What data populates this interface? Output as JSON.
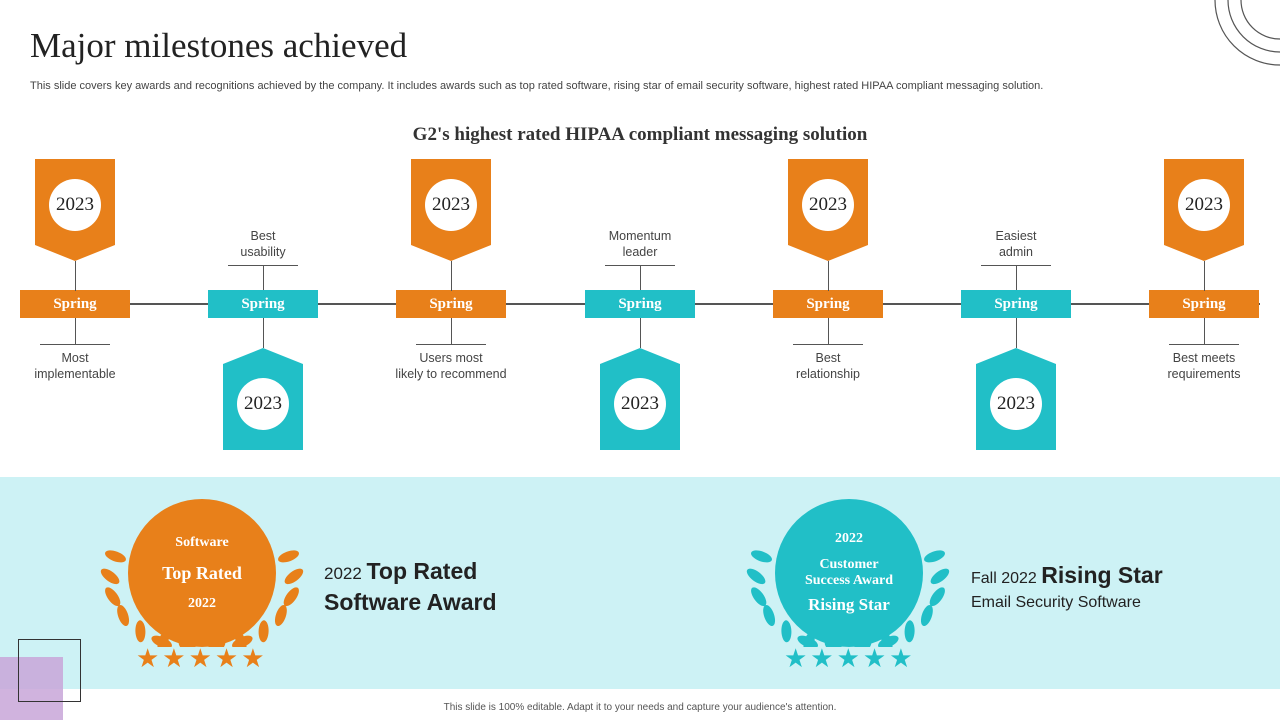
{
  "page": {
    "title": "Major milestones achieved",
    "subtitle": "This slide covers key awards and recognitions achieved by the company. It includes awards such as top rated software, rising star of email security software, highest rated HIPAA compliant messaging solution.",
    "footer": "This slide is 100% editable. Adapt it to your needs and capture your audience's attention."
  },
  "timeline": {
    "heading": "G2's highest rated HIPAA compliant messaging solution",
    "colors": {
      "orange": "#e8801a",
      "teal": "#21bfc7"
    },
    "items": [
      {
        "season": "Spring",
        "year": "2023",
        "label_line1": "Most",
        "label_line2": "implementable",
        "color": "orange"
      },
      {
        "season": "Spring",
        "year": "2023",
        "label_line1": "Best",
        "label_line2": "usability",
        "color": "teal"
      },
      {
        "season": "Spring",
        "year": "2023",
        "label_line1": "Users most",
        "label_line2": "likely to recommend",
        "color": "orange"
      },
      {
        "season": "Spring",
        "year": "2023",
        "label_line1": "Momentum",
        "label_line2": "leader",
        "color": "teal"
      },
      {
        "season": "Spring",
        "year": "2023",
        "label_line1": "Best",
        "label_line2": "relationship",
        "color": "orange"
      },
      {
        "season": "Spring",
        "year": "2023",
        "label_line1": "Easiest",
        "label_line2": "admin",
        "color": "teal"
      },
      {
        "season": "Spring",
        "year": "2023",
        "label_line1": "Best meets",
        "label_line2": "requirements",
        "color": "orange"
      }
    ]
  },
  "awards": {
    "left": {
      "badge_line1": "Software",
      "badge_line2": "Top Rated",
      "badge_line3": "2022",
      "title_prefix": "2022 ",
      "title_bold": "Top Rated",
      "title_line2": "Software Award",
      "stars": "★★★★★",
      "color": "#e8801a"
    },
    "right": {
      "badge_line1": "2022",
      "badge_line2": "Customer",
      "badge_line3": "Success Award",
      "badge_line4": "Rising Star",
      "title_prefix": "Fall 2022 ",
      "title_bold": "Rising Star",
      "title_line2": "Email Security Software",
      "stars": "★★★★★",
      "color": "#21bfc7"
    }
  }
}
